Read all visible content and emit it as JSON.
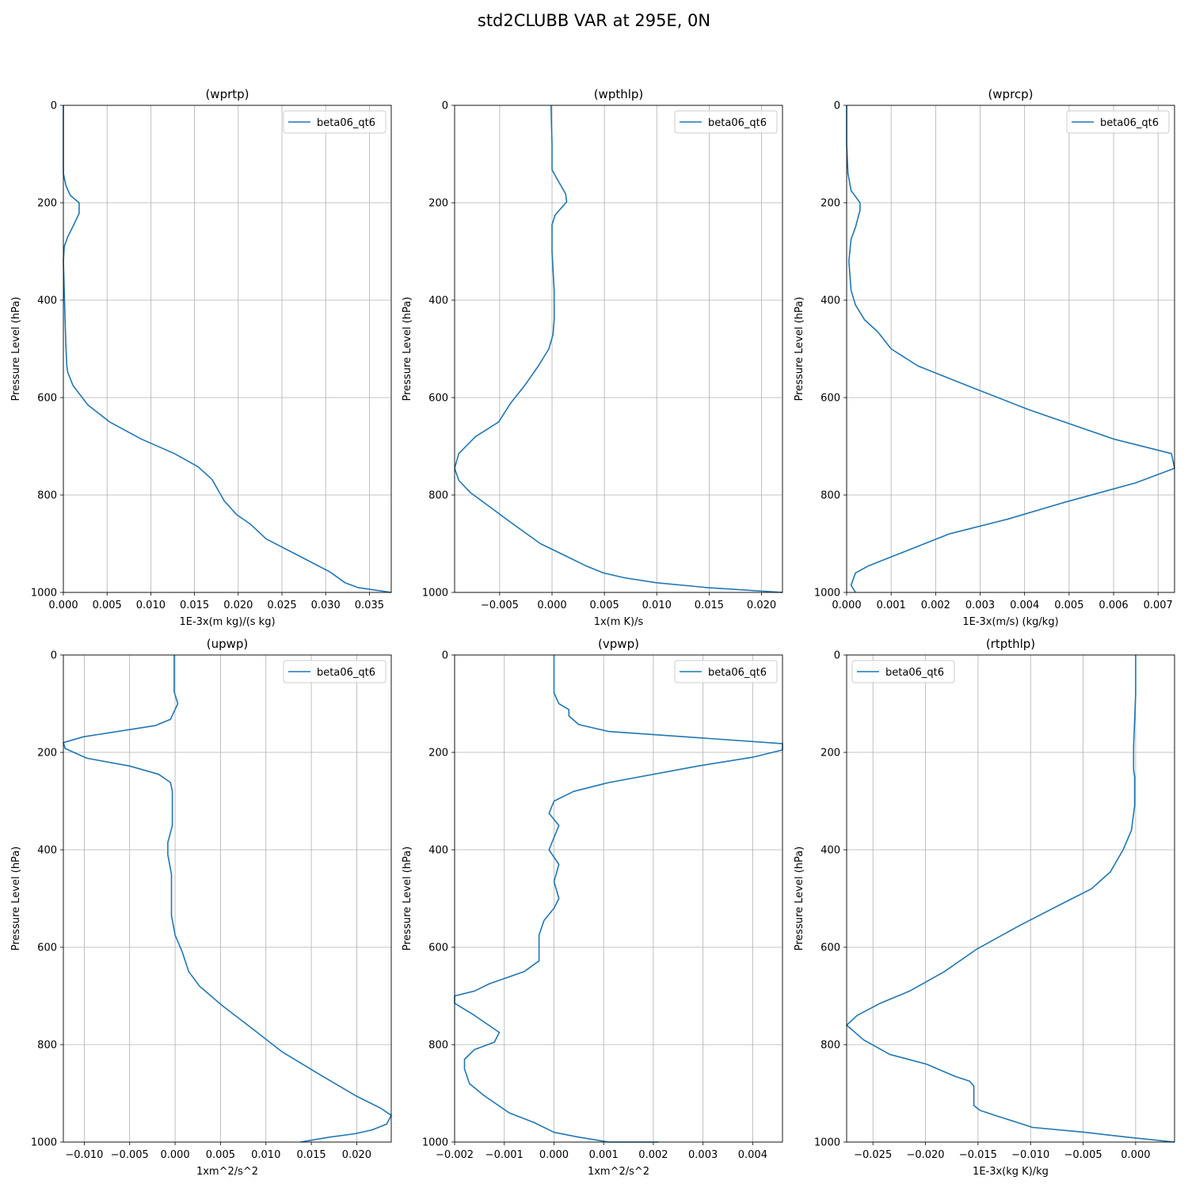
{
  "figure": {
    "title": "std2CLUBB VAR at 295E, 0N",
    "line_color": "#1f77b4",
    "grid_color": "#b0b0b0"
  },
  "chart_data": [
    {
      "type": "line",
      "title": "(wprtp)",
      "xlabel": "1E-3x(m kg)/(s kg)",
      "ylabel": "Pressure Level (hPa)",
      "xlim": [
        0.0,
        0.0375
      ],
      "ylim": [
        1000,
        0
      ],
      "xticks": [
        0.0,
        0.005,
        0.01,
        0.015,
        0.02,
        0.025,
        0.03,
        0.035
      ],
      "xtick_labels": [
        "0.000",
        "0.005",
        "0.010",
        "0.015",
        "0.020",
        "0.025",
        "0.030",
        "0.035"
      ],
      "yticks": [
        0,
        200,
        400,
        600,
        800,
        1000
      ],
      "ytick_labels": [
        "0",
        "200",
        "400",
        "600",
        "800",
        "1000"
      ],
      "grid": true,
      "legend_position": "upper right",
      "series": [
        {
          "name": "beta06_qt6",
          "x": [
            0.0,
            0.0,
            0.0,
            0.0003,
            0.0008,
            0.0018,
            0.0018,
            0.0012,
            0.0005,
            0.0001,
            0.0,
            0.0001,
            0.0002,
            0.0003,
            0.0004,
            0.0005,
            0.0011,
            0.0028,
            0.0053,
            0.0089,
            0.0127,
            0.0154,
            0.017,
            0.0184,
            0.0198,
            0.0214,
            0.0232,
            0.0275,
            0.0305,
            0.0322,
            0.0337,
            0.0375
          ],
          "y": [
            0,
            80,
            140,
            165,
            185,
            200,
            222,
            245,
            270,
            290,
            320,
            380,
            440,
            500,
            535,
            548,
            575,
            615,
            650,
            685,
            715,
            742,
            768,
            812,
            840,
            860,
            890,
            930,
            958,
            980,
            990,
            1000
          ]
        }
      ]
    },
    {
      "type": "line",
      "title": "(wpthlp)",
      "xlabel": "1x(m K)/s",
      "ylabel": "Pressure Level (hPa)",
      "xlim": [
        -0.0093,
        0.022
      ],
      "ylim": [
        1000,
        0
      ],
      "xticks": [
        -0.005,
        0.0,
        0.005,
        0.01,
        0.015,
        0.02
      ],
      "xtick_labels": [
        "−0.005",
        "0.000",
        "0.005",
        "0.010",
        "0.015",
        "0.020"
      ],
      "yticks": [
        0,
        200,
        400,
        600,
        800,
        1000
      ],
      "ytick_labels": [
        "0",
        "200",
        "400",
        "600",
        "800",
        "1000"
      ],
      "grid": true,
      "legend_position": "upper right",
      "series": [
        {
          "name": "beta06_qt6",
          "x": [
            -0.0001,
            0.0,
            0.0,
            0.0004,
            0.0013,
            0.0014,
            0.0003,
            0.0,
            0.0,
            0.0002,
            0.0002,
            0.0001,
            -0.0003,
            -0.0013,
            -0.0026,
            -0.0039,
            -0.0051,
            -0.0073,
            -0.0089,
            -0.0093,
            -0.0089,
            -0.0078,
            -0.0059,
            -0.0037,
            -0.0011,
            0.0013,
            0.0032,
            0.0049,
            0.0069,
            0.0099,
            0.0148,
            0.022
          ],
          "y": [
            0,
            80,
            132,
            148,
            182,
            198,
            225,
            245,
            300,
            380,
            440,
            470,
            500,
            535,
            575,
            610,
            650,
            680,
            715,
            745,
            770,
            795,
            825,
            860,
            900,
            925,
            945,
            960,
            970,
            980,
            990,
            1000
          ]
        }
      ]
    },
    {
      "type": "line",
      "title": "(wprcp)",
      "xlabel": "1E-3x(m/s) (kg/kg)",
      "ylabel": "Pressure Level (hPa)",
      "xlim": [
        0.0,
        0.00737
      ],
      "ylim": [
        1000,
        0
      ],
      "xticks": [
        0.0,
        0.001,
        0.002,
        0.003,
        0.004,
        0.005,
        0.006,
        0.007
      ],
      "xtick_labels": [
        "0.000",
        "0.001",
        "0.002",
        "0.003",
        "0.004",
        "0.005",
        "0.006",
        "0.007"
      ],
      "yticks": [
        0,
        200,
        400,
        600,
        800,
        1000
      ],
      "ytick_labels": [
        "0",
        "200",
        "400",
        "600",
        "800",
        "1000"
      ],
      "grid": true,
      "legend_position": "upper right",
      "series": [
        {
          "name": "beta06_qt6",
          "x": [
            0.0,
            0.0,
            3e-05,
            0.0001,
            0.0003,
            0.0003,
            0.0002,
            0.0001,
            5e-05,
            0.0001,
            0.0002,
            0.0004,
            0.0007,
            0.001,
            0.0016,
            0.0027,
            0.0041,
            0.006,
            0.0073,
            0.00737,
            0.0065,
            0.0049,
            0.0036,
            0.0023,
            0.0012,
            0.0005,
            0.0002,
            0.0001,
            0.0002
          ],
          "y": [
            0,
            80,
            140,
            175,
            200,
            215,
            250,
            275,
            320,
            380,
            410,
            440,
            465,
            500,
            535,
            575,
            625,
            685,
            715,
            745,
            775,
            815,
            850,
            880,
            920,
            945,
            960,
            985,
            1000
          ]
        }
      ]
    },
    {
      "type": "line",
      "title": "(upwp)",
      "xlabel": "1xm^2/s^2",
      "ylabel": "Pressure Level (hPa)",
      "xlim": [
        -0.0123,
        0.0238
      ],
      "ylim": [
        1000,
        0
      ],
      "xticks": [
        -0.01,
        -0.005,
        0.0,
        0.005,
        0.01,
        0.015,
        0.02
      ],
      "xtick_labels": [
        "−0.010",
        "−0.005",
        "0.000",
        "0.005",
        "0.010",
        "0.015",
        "0.020"
      ],
      "yticks": [
        0,
        200,
        400,
        600,
        800,
        1000
      ],
      "ytick_labels": [
        "0",
        "200",
        "400",
        "600",
        "800",
        "1000"
      ],
      "grid": true,
      "legend_position": "upper right",
      "series": [
        {
          "name": "beta06_qt6",
          "x": [
            -0.0001,
            -0.0001,
            0.0003,
            -0.0005,
            -0.0022,
            -0.0101,
            -0.0123,
            -0.0121,
            -0.0097,
            -0.005,
            -0.0018,
            -0.0005,
            -0.0003,
            -0.0003,
            -0.0003,
            -0.0008,
            -0.0008,
            -0.0004,
            -0.0004,
            -0.0004,
            0.0,
            0.0008,
            0.0015,
            0.0027,
            0.0052,
            0.0087,
            0.0118,
            0.0158,
            0.0199,
            0.0226,
            0.0238,
            0.0233,
            0.0217,
            0.0198,
            0.017,
            0.0138
          ],
          "y": [
            0,
            75,
            100,
            132,
            145,
            168,
            180,
            192,
            212,
            228,
            245,
            262,
            280,
            300,
            350,
            385,
            410,
            450,
            490,
            535,
            575,
            610,
            650,
            680,
            720,
            770,
            815,
            860,
            905,
            930,
            945,
            963,
            975,
            983,
            990,
            1000
          ]
        }
      ]
    },
    {
      "type": "line",
      "title": "(vpwp)",
      "xlabel": "1xm^2/s^2",
      "ylabel": "Pressure Level (hPa)",
      "xlim": [
        -0.002,
        0.0046
      ],
      "ylim": [
        1000,
        0
      ],
      "xticks": [
        -0.002,
        -0.001,
        0.0,
        0.001,
        0.002,
        0.003,
        0.004
      ],
      "xtick_labels": [
        "−0.002",
        "−0.001",
        "0.000",
        "0.001",
        "0.002",
        "0.003",
        "0.004"
      ],
      "yticks": [
        0,
        200,
        400,
        600,
        800,
        1000
      ],
      "ytick_labels": [
        "0",
        "200",
        "400",
        "600",
        "800",
        "1000"
      ],
      "grid": true,
      "legend_position": "upper right",
      "series": [
        {
          "name": "beta06_qt6",
          "x": [
            0.0,
            0.0,
            0.0001,
            0.0003,
            0.0003,
            0.0005,
            0.0011,
            0.0046,
            0.0046,
            0.004,
            0.0029,
            0.0011,
            0.0004,
            0.0,
            -0.0001,
            0.0001,
            -0.0001,
            0.0001,
            0.0,
            0.0001,
            0.0,
            -0.0002,
            -0.0003,
            -0.0003,
            -0.0003,
            -0.0006,
            -0.0013,
            -0.0016,
            -0.002,
            -0.002,
            -0.0016,
            -0.0011,
            -0.0012,
            -0.0016,
            -0.0018,
            -0.0018,
            -0.0017,
            -0.0014,
            -0.0009,
            -0.0004,
            0.0,
            0.0005,
            0.0011,
            0.0021
          ],
          "y": [
            0,
            78,
            100,
            112,
            125,
            143,
            157,
            182,
            195,
            210,
            228,
            262,
            280,
            300,
            325,
            350,
            400,
            430,
            465,
            500,
            520,
            545,
            575,
            610,
            628,
            650,
            675,
            690,
            700,
            715,
            740,
            775,
            795,
            810,
            830,
            850,
            880,
            905,
            940,
            960,
            980,
            990,
            1000,
            1000
          ]
        }
      ]
    },
    {
      "type": "line",
      "title": "(rtpthlp)",
      "xlabel": "1E-3x(kg K)/kg",
      "ylabel": "Pressure Level (hPa)",
      "xlim": [
        -0.0275,
        0.0037
      ],
      "ylim": [
        1000,
        0
      ],
      "xticks": [
        -0.025,
        -0.02,
        -0.015,
        -0.01,
        -0.005,
        0.0
      ],
      "xtick_labels": [
        "−0.025",
        "−0.020",
        "−0.015",
        "−0.010",
        "−0.005",
        "0.000"
      ],
      "yticks": [
        0,
        200,
        400,
        600,
        800,
        1000
      ],
      "ytick_labels": [
        "0",
        "200",
        "400",
        "600",
        "800",
        "1000"
      ],
      "grid": true,
      "legend_position": "upper left",
      "series": [
        {
          "name": "beta06_qt6",
          "x": [
            0.0,
            0.0,
            -0.0002,
            -0.0002,
            -0.0001,
            -0.0001,
            -0.0004,
            -0.0012,
            -0.0024,
            -0.0042,
            -0.0065,
            -0.011,
            -0.0152,
            -0.0182,
            -0.0215,
            -0.0243,
            -0.0265,
            -0.0275,
            -0.0259,
            -0.0234,
            -0.0199,
            -0.0172,
            -0.0158,
            -0.0154,
            -0.0154,
            -0.0148,
            -0.0134,
            -0.0098,
            -0.0048,
            -0.0008,
            0.0037
          ],
          "y": [
            0,
            80,
            190,
            235,
            250,
            310,
            360,
            400,
            445,
            480,
            505,
            555,
            605,
            650,
            690,
            715,
            740,
            760,
            790,
            820,
            840,
            865,
            875,
            885,
            925,
            935,
            945,
            970,
            980,
            990,
            1000
          ]
        }
      ]
    }
  ]
}
